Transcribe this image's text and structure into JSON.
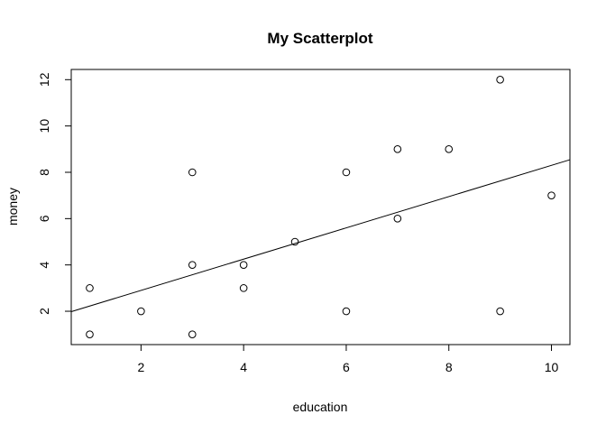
{
  "chart_data": {
    "type": "scatter",
    "title": "My Scatterplot",
    "xlabel": "education",
    "ylabel": "money",
    "xlim": [
      0.64,
      10.36
    ],
    "ylim": [
      0.56,
      12.44
    ],
    "xticks": [
      2,
      4,
      6,
      8,
      10
    ],
    "yticks": [
      2,
      4,
      6,
      8,
      10,
      12
    ],
    "grid": false,
    "legend": "none",
    "series": [
      {
        "x": [
          1,
          1,
          2,
          3,
          3,
          3,
          4,
          4,
          5,
          6,
          6,
          7,
          7,
          8,
          9,
          9,
          10
        ],
        "y": [
          1,
          3,
          2,
          1,
          4,
          8,
          3,
          4,
          5,
          2,
          8,
          6,
          9,
          9,
          2,
          12,
          7
        ],
        "marker": "open-circle",
        "color": "#000000"
      }
    ],
    "trendline": {
      "intercept": 1.55,
      "slope": 0.675,
      "color": "#000000"
    }
  }
}
